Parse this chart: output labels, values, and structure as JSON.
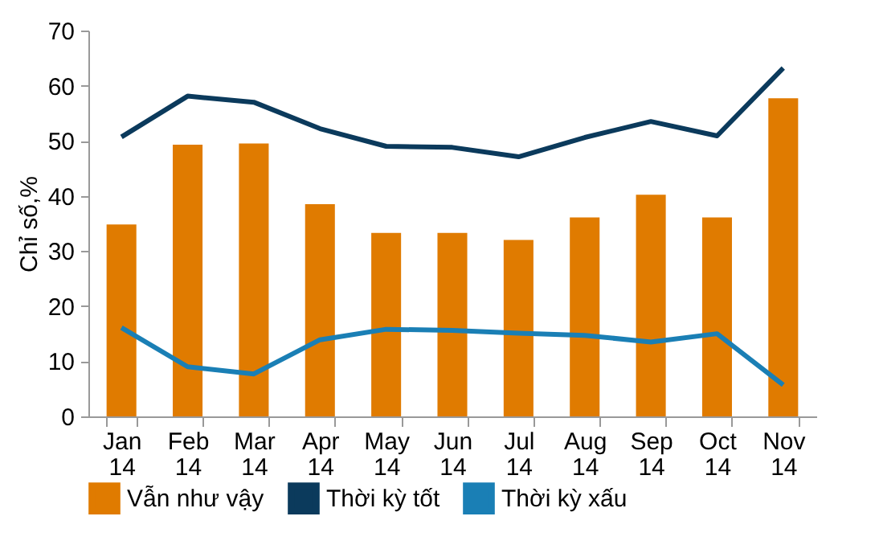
{
  "chart_data": {
    "type": "bar",
    "ylabel": "Chỉ số,%",
    "categories": [
      "Jan 14",
      "Feb 14",
      "Mar 14",
      "Apr 14",
      "May 14",
      "Jun 14",
      "Jul 14",
      "Aug 14",
      "Sep 14",
      "Oct 14",
      "Nov 14"
    ],
    "series": [
      {
        "name": "Vẫn như vậy",
        "color": "#e07b00",
        "values": [
          34.8,
          49.3,
          49.5,
          38.5,
          33.3,
          33.3,
          32.0,
          36.1,
          40.2,
          36.1,
          57.7
        ]
      },
      {
        "name": "Thời kỳ tốt",
        "type": "line",
        "color": "#0b3a5c",
        "values": [
          50.7,
          58.1,
          57.0,
          52.2,
          49.0,
          48.8,
          47.1,
          50.6,
          53.5,
          50.9,
          63.2
        ]
      },
      {
        "name": "Thời kỳ xấu",
        "type": "line",
        "color": "#1a7fb5",
        "values": [
          16.1,
          9.0,
          7.7,
          13.9,
          15.8,
          15.6,
          15.1,
          14.7,
          13.5,
          15.0,
          5.7
        ]
      }
    ],
    "ylim": [
      0,
      70
    ],
    "yticks": [
      0,
      10,
      20,
      30,
      40,
      50,
      60,
      70
    ],
    "grid": false,
    "legend": "bottom"
  }
}
